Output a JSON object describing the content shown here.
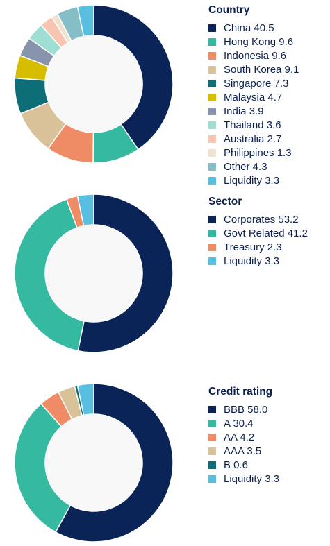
{
  "charts": [
    {
      "title": "Country",
      "chart_data": {
        "type": "pie",
        "title": "Country",
        "slices": [
          {
            "label": "China",
            "value": 40.5,
            "color": "#0b2457"
          },
          {
            "label": "Hong Kong",
            "value": 9.6,
            "color": "#35b9a0"
          },
          {
            "label": "Indonesia",
            "value": 9.6,
            "color": "#ef8c66"
          },
          {
            "label": "South Korea",
            "value": 9.1,
            "color": "#d9c29a"
          },
          {
            "label": "Singapore",
            "value": 7.3,
            "color": "#0d6e78"
          },
          {
            "label": "Malaysia",
            "value": 4.7,
            "color": "#d6bd00"
          },
          {
            "label": "India",
            "value": 3.9,
            "color": "#8894ae"
          },
          {
            "label": "Thailand",
            "value": 3.6,
            "color": "#9fdfd3"
          },
          {
            "label": "Australia",
            "value": 2.7,
            "color": "#f7c5b1"
          },
          {
            "label": "Philippines",
            "value": 1.3,
            "color": "#efe3cf"
          },
          {
            "label": "Other",
            "value": 4.3,
            "color": "#85bec7"
          },
          {
            "label": "Liquidity",
            "value": 3.3,
            "color": "#58bfe0"
          }
        ]
      }
    },
    {
      "title": "Sector",
      "chart_data": {
        "type": "pie",
        "title": "Sector",
        "slices": [
          {
            "label": "Corporates",
            "value": 53.2,
            "color": "#0b2457"
          },
          {
            "label": "Govt Related",
            "value": 41.2,
            "color": "#35b9a0"
          },
          {
            "label": "Treasury",
            "value": 2.3,
            "color": "#ef8c66"
          },
          {
            "label": "Liquidity",
            "value": 3.3,
            "color": "#58bfe0"
          }
        ]
      }
    },
    {
      "title": "Credit rating",
      "chart_data": {
        "type": "pie",
        "title": "Credit rating",
        "slices": [
          {
            "label": "BBB",
            "value": 58.0,
            "color": "#0b2457"
          },
          {
            "label": "A",
            "value": 30.4,
            "color": "#35b9a0"
          },
          {
            "label": "AA",
            "value": 4.2,
            "color": "#ef8c66"
          },
          {
            "label": "AAA",
            "value": 3.5,
            "color": "#d9c29a"
          },
          {
            "label": "B",
            "value": 0.6,
            "color": "#0d6e78"
          },
          {
            "label": "Liquidity",
            "value": 3.3,
            "color": "#58bfe0"
          }
        ]
      }
    }
  ]
}
